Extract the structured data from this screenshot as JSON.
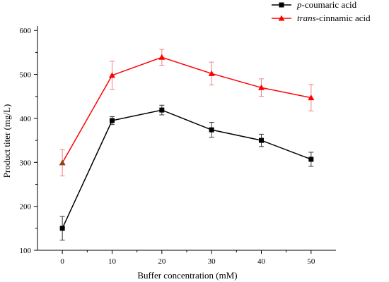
{
  "chart_data": {
    "type": "line",
    "title": "",
    "xlabel": "Buffer concentration (mM)",
    "ylabel": "Product titer (mg/L)",
    "xlim": [
      -5,
      55
    ],
    "ylim": [
      100,
      610
    ],
    "x_ticks": [
      0,
      10,
      20,
      30,
      40,
      50
    ],
    "x_tick_labels": [
      "0",
      "10",
      "20",
      "30",
      "40",
      "50"
    ],
    "y_ticks": [
      100,
      200,
      300,
      400,
      500,
      600
    ],
    "y_tick_labels": [
      "100",
      "200",
      "300",
      "400",
      "500",
      "600"
    ],
    "grid": false,
    "legend_position": "top-right",
    "x": [
      0,
      10,
      20,
      30,
      40,
      50
    ],
    "series": [
      {
        "name": "p-coumaric acid",
        "name_italic": "p",
        "name_rest": "-coumaric acid",
        "marker": "square",
        "color": "#000000",
        "values": [
          150,
          395,
          419,
          374,
          350,
          307
        ],
        "errors": [
          27,
          9,
          11,
          17,
          14,
          16
        ]
      },
      {
        "name": "trans-cinnamic acid",
        "name_italic": "trans",
        "name_rest": "-cinnamic acid",
        "marker": "triangle",
        "color": "#ff0000",
        "values": [
          299,
          498,
          539,
          502,
          470,
          447
        ],
        "errors": [
          30,
          32,
          18,
          26,
          20,
          30
        ]
      }
    ]
  }
}
